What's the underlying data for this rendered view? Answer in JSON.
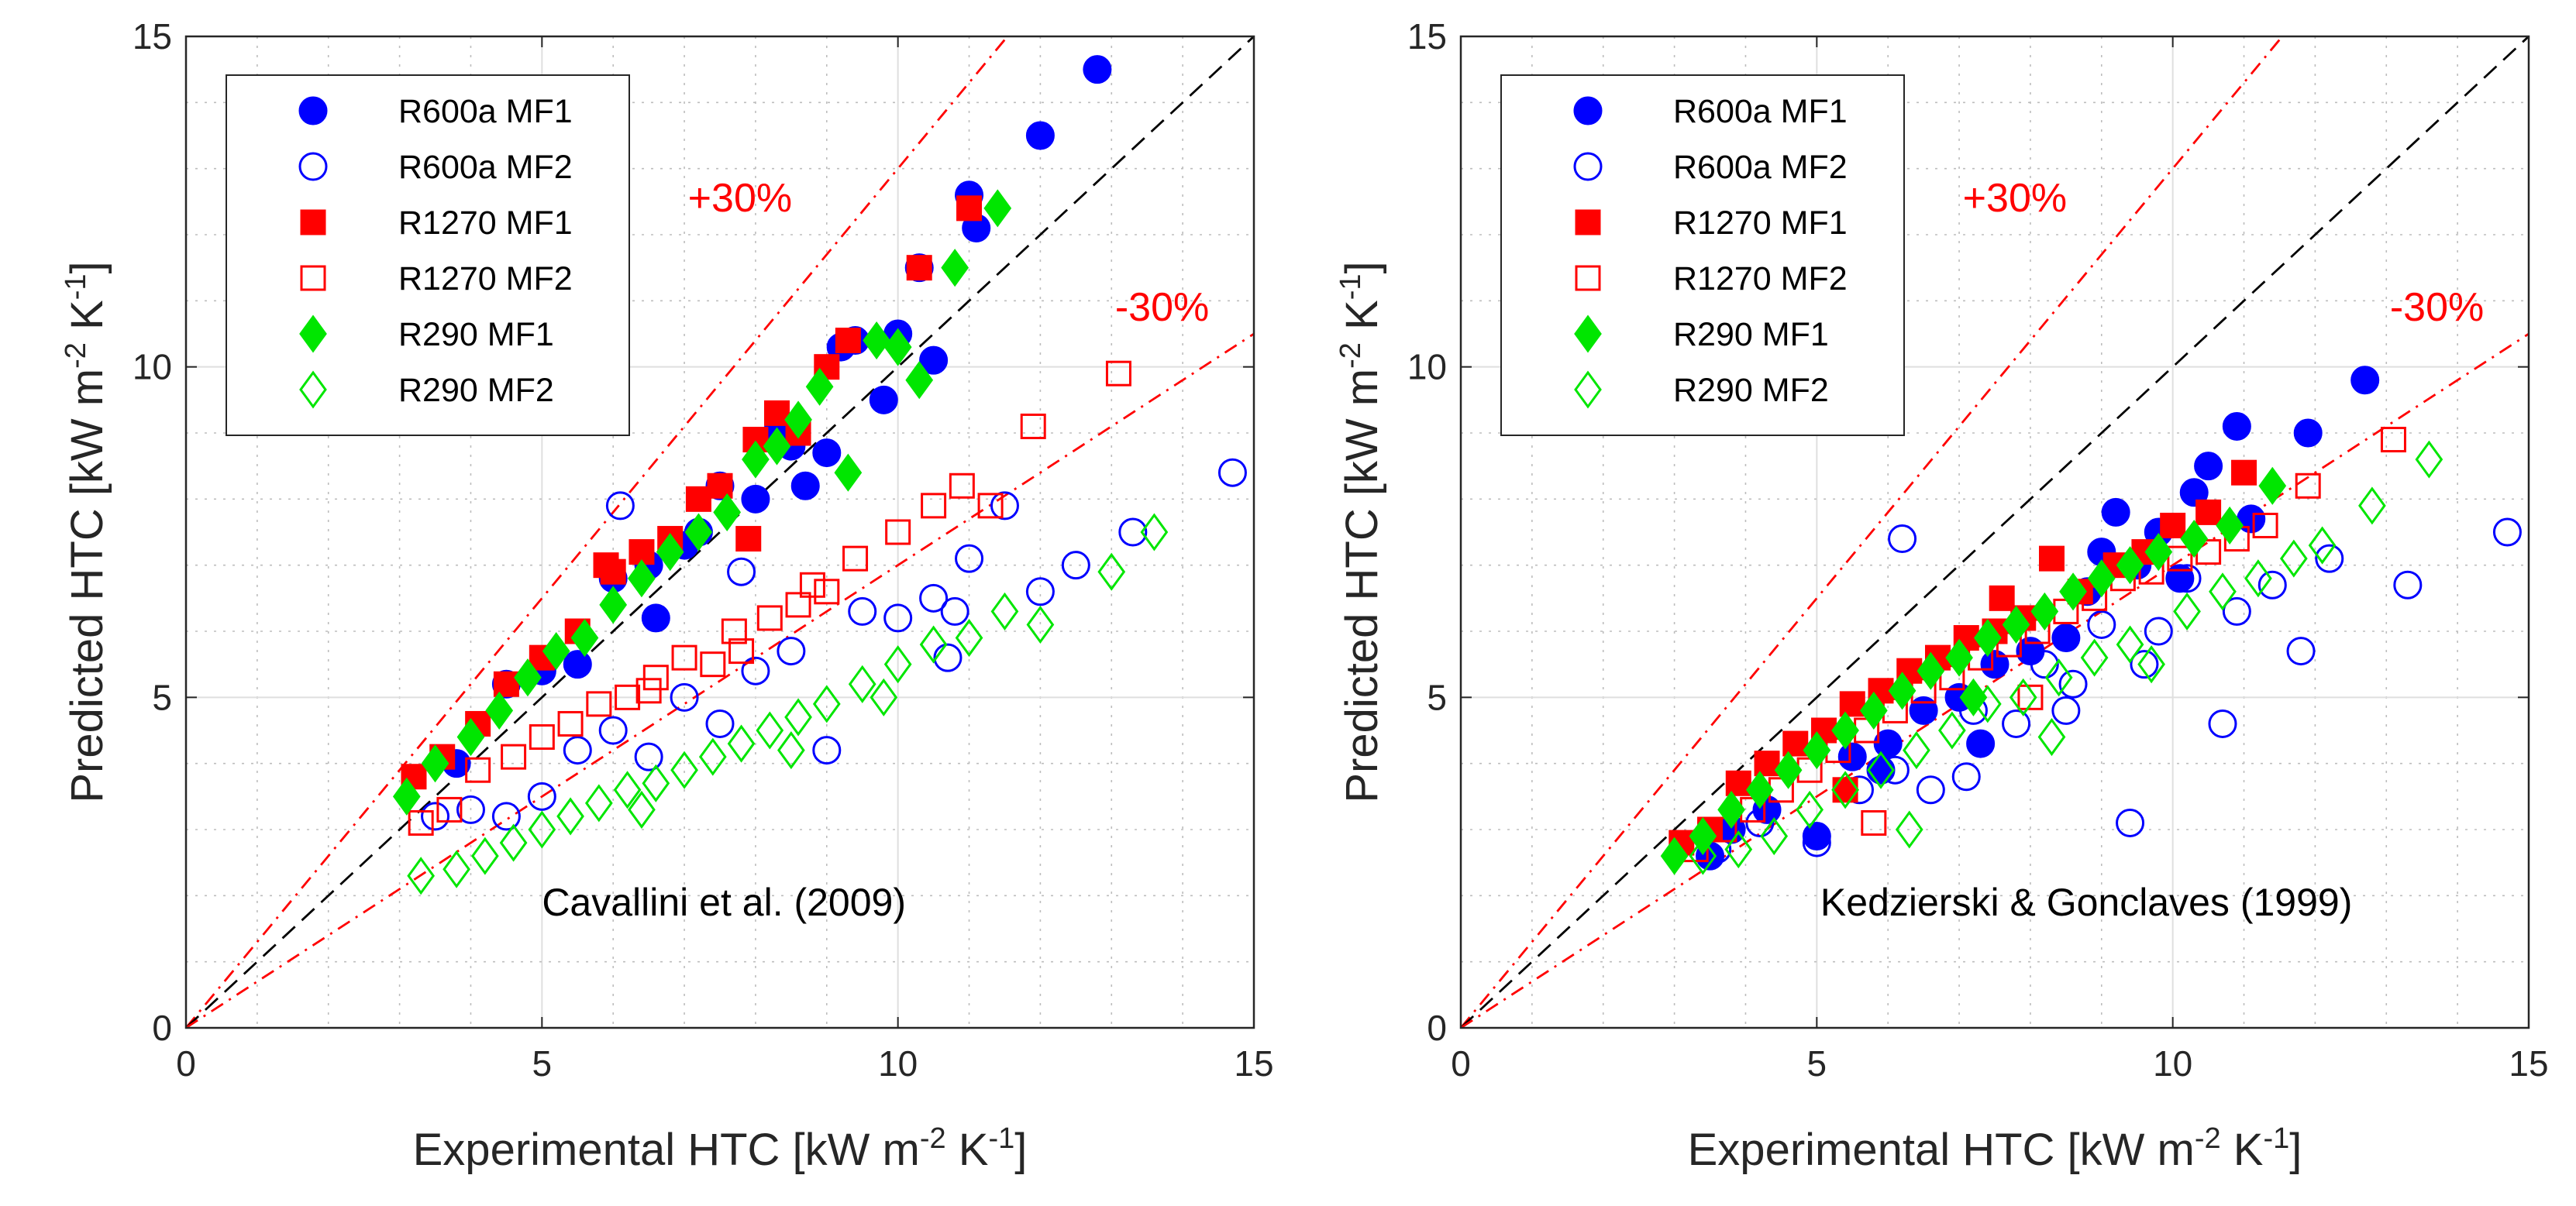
{
  "colors": {
    "R600a": "#0000ff",
    "R1270": "#ff0000",
    "R290": "#00e600",
    "band": "#ff0000",
    "identity": "#000000"
  },
  "chart_data": [
    {
      "type": "scatter",
      "annotation": "Cavallini et al. (2009)",
      "xlabel": "Experimental HTC [kW m",
      "ylabel": "Predicted HTC [kW m",
      "unit_exp_m": "-2",
      "unit_k": " K",
      "unit_exp_k": "-1",
      "unit_close": "]",
      "xlim": [
        0,
        15
      ],
      "ylim": [
        0,
        15
      ],
      "xticks": [
        "0",
        "5",
        "10",
        "15"
      ],
      "yticks": [
        "0",
        "5",
        "10",
        "15"
      ],
      "grid": true,
      "legend_position": "top-left",
      "band_labels": {
        "plus": "+30%",
        "minus": "-30%"
      },
      "series": [
        {
          "name": "R600a MF1",
          "marker": "circle",
          "filled": true,
          "color": "#0000ff",
          "x": [
            3.8,
            4.5,
            5.0,
            5.5,
            6.0,
            6.5,
            7.0,
            7.5,
            8.0,
            8.5,
            8.7,
            9.0,
            9.2,
            9.4,
            9.8,
            10.0,
            10.3,
            10.5,
            11.0,
            11.1,
            12.0,
            12.8,
            6.6,
            7.2,
            8.3
          ],
          "y": [
            4.0,
            5.2,
            5.4,
            5.5,
            6.8,
            7.0,
            7.3,
            8.2,
            8.0,
            8.8,
            8.2,
            8.7,
            10.3,
            10.4,
            9.5,
            10.5,
            11.5,
            10.1,
            12.6,
            12.1,
            13.5,
            14.5,
            6.2,
            7.5,
            9.0
          ]
        },
        {
          "name": "R600a MF2",
          "marker": "circle",
          "filled": false,
          "color": "#0000ff",
          "x": [
            3.5,
            4.0,
            4.5,
            5.0,
            5.5,
            6.0,
            6.5,
            7.0,
            7.5,
            8.0,
            8.5,
            9.0,
            9.5,
            10.0,
            10.5,
            10.8,
            11.0,
            11.5,
            12.0,
            12.5,
            13.3,
            14.7,
            6.1,
            7.8,
            10.7
          ],
          "y": [
            3.2,
            3.3,
            3.2,
            3.5,
            4.2,
            4.5,
            4.1,
            5.0,
            4.6,
            5.4,
            5.7,
            4.2,
            6.3,
            6.2,
            6.5,
            6.3,
            7.1,
            7.9,
            6.6,
            7.0,
            7.5,
            8.4,
            7.9,
            6.9,
            5.6
          ]
        },
        {
          "name": "R1270 MF1",
          "marker": "square",
          "filled": true,
          "color": "#ff0000",
          "x": [
            3.2,
            3.6,
            4.1,
            4.5,
            5.0,
            5.5,
            5.9,
            6.4,
            6.8,
            7.2,
            7.5,
            8.0,
            8.3,
            8.6,
            9.0,
            9.3,
            10.3,
            11.0,
            6.0,
            7.9
          ],
          "y": [
            3.8,
            4.1,
            4.6,
            5.2,
            5.6,
            6.0,
            7.0,
            7.2,
            7.4,
            8.0,
            8.2,
            8.9,
            9.3,
            9.0,
            10.0,
            10.4,
            11.5,
            12.4,
            6.9,
            7.4
          ]
        },
        {
          "name": "R1270 MF2",
          "marker": "square",
          "filled": false,
          "color": "#ff0000",
          "x": [
            3.3,
            3.7,
            4.1,
            4.6,
            5.0,
            5.4,
            5.8,
            6.2,
            6.6,
            7.0,
            7.4,
            7.8,
            8.2,
            8.6,
            9.0,
            9.4,
            10.0,
            10.5,
            10.9,
            11.3,
            11.9,
            13.1,
            6.5,
            7.7,
            8.8
          ],
          "y": [
            3.1,
            3.3,
            3.9,
            4.1,
            4.4,
            4.6,
            4.9,
            5.0,
            5.3,
            5.6,
            5.5,
            5.7,
            6.2,
            6.4,
            6.6,
            7.1,
            7.5,
            7.9,
            8.2,
            7.9,
            9.1,
            9.9,
            5.1,
            6.0,
            6.7
          ]
        },
        {
          "name": "R290 MF1",
          "marker": "diamond",
          "filled": true,
          "color": "#00e600",
          "x": [
            3.1,
            3.5,
            4.0,
            4.4,
            4.8,
            5.2,
            5.6,
            6.0,
            6.4,
            6.8,
            7.2,
            7.6,
            8.0,
            8.3,
            8.6,
            8.9,
            9.3,
            9.7,
            10.0,
            10.3,
            10.8,
            11.4
          ],
          "y": [
            3.5,
            4.0,
            4.4,
            4.8,
            5.3,
            5.7,
            5.9,
            6.4,
            6.8,
            7.2,
            7.5,
            7.8,
            8.6,
            8.8,
            9.2,
            9.7,
            8.4,
            10.4,
            10.3,
            9.8,
            11.5,
            12.4
          ]
        },
        {
          "name": "R290 MF2",
          "marker": "diamond",
          "filled": false,
          "color": "#00e600",
          "x": [
            3.3,
            3.8,
            4.2,
            4.6,
            5.0,
            5.4,
            5.8,
            6.2,
            6.6,
            7.0,
            7.4,
            7.8,
            8.2,
            8.6,
            9.0,
            9.5,
            10.0,
            10.5,
            11.0,
            11.5,
            12.0,
            13.0,
            13.6,
            6.4,
            8.5,
            9.8
          ],
          "y": [
            2.3,
            2.4,
            2.6,
            2.8,
            3.0,
            3.2,
            3.4,
            3.6,
            3.7,
            3.9,
            4.1,
            4.3,
            4.5,
            4.7,
            4.9,
            5.2,
            5.5,
            5.8,
            5.9,
            6.3,
            6.1,
            6.9,
            7.5,
            3.3,
            4.2,
            5.0
          ]
        }
      ]
    },
    {
      "type": "scatter",
      "annotation": "Kedzierski & Gonclaves (1999)",
      "xlabel": "Experimental HTC [kW m",
      "ylabel": "Predicted HTC [kW m",
      "unit_exp_m": "-2",
      "unit_k": " K",
      "unit_exp_k": "-1",
      "unit_close": "]",
      "xlim": [
        0,
        15
      ],
      "ylim": [
        0,
        15
      ],
      "xticks": [
        "0",
        "5",
        "10",
        "15"
      ],
      "yticks": [
        "0",
        "5",
        "10",
        "15"
      ],
      "grid": true,
      "legend_position": "top-left",
      "band_labels": {
        "plus": "+30%",
        "minus": "-30%"
      },
      "series": [
        {
          "name": "R600a MF1",
          "marker": "circle",
          "filled": true,
          "color": "#0000ff",
          "x": [
            3.5,
            3.8,
            4.3,
            5.0,
            5.5,
            6.0,
            6.5,
            7.0,
            7.5,
            8.0,
            8.5,
            9.0,
            9.2,
            9.5,
            9.8,
            10.1,
            10.3,
            10.5,
            10.9,
            11.1,
            11.9,
            12.7,
            8.8,
            7.3,
            5.9
          ],
          "y": [
            2.6,
            3.0,
            3.3,
            2.9,
            4.1,
            4.3,
            4.8,
            5.0,
            5.5,
            5.7,
            5.9,
            7.2,
            7.8,
            7.0,
            7.5,
            6.8,
            8.1,
            8.5,
            9.1,
            7.7,
            9.0,
            9.8,
            6.6,
            4.3,
            3.9
          ]
        },
        {
          "name": "R600a MF2",
          "marker": "circle",
          "filled": false,
          "color": "#0000ff",
          "x": [
            3.6,
            4.2,
            5.0,
            5.6,
            6.1,
            6.6,
            7.2,
            7.8,
            8.2,
            8.6,
            9.0,
            9.4,
            9.8,
            10.2,
            10.7,
            10.9,
            11.4,
            11.8,
            12.2,
            13.3,
            14.7,
            7.1,
            9.6,
            6.2,
            8.5
          ],
          "y": [
            2.7,
            3.1,
            2.8,
            3.6,
            3.9,
            3.6,
            4.8,
            4.6,
            5.5,
            5.2,
            6.1,
            3.1,
            6.0,
            6.8,
            4.6,
            6.3,
            6.7,
            5.7,
            7.1,
            6.7,
            7.5,
            3.8,
            5.5,
            7.4,
            4.8
          ]
        },
        {
          "name": "R1270 MF1",
          "marker": "square",
          "filled": true,
          "color": "#ff0000",
          "x": [
            3.1,
            3.5,
            3.9,
            4.3,
            4.7,
            5.1,
            5.5,
            5.9,
            6.3,
            6.7,
            7.1,
            7.5,
            7.9,
            8.3,
            8.7,
            9.2,
            9.6,
            10.0,
            10.5,
            11.0,
            7.6,
            5.4
          ],
          "y": [
            2.8,
            3.0,
            3.7,
            4.0,
            4.3,
            4.5,
            4.9,
            5.1,
            5.4,
            5.6,
            5.9,
            6.0,
            6.2,
            7.1,
            6.6,
            7.0,
            7.2,
            7.6,
            7.8,
            8.4,
            6.5,
            3.6
          ]
        },
        {
          "name": "R1270 MF2",
          "marker": "square",
          "filled": false,
          "color": "#ff0000",
          "x": [
            3.3,
            3.7,
            4.1,
            4.5,
            4.9,
            5.3,
            5.7,
            6.1,
            6.5,
            6.9,
            7.3,
            7.7,
            8.1,
            8.5,
            8.9,
            9.3,
            9.7,
            10.1,
            10.5,
            10.9,
            11.3,
            11.9,
            13.1,
            5.8,
            8.0
          ],
          "y": [
            2.7,
            3.0,
            3.3,
            3.6,
            3.9,
            4.2,
            4.5,
            4.8,
            5.1,
            5.3,
            5.6,
            5.8,
            6.0,
            6.3,
            6.5,
            6.8,
            6.9,
            7.1,
            7.2,
            7.4,
            7.6,
            8.2,
            8.9,
            3.1,
            5.0
          ]
        },
        {
          "name": "R290 MF1",
          "marker": "diamond",
          "filled": true,
          "color": "#00e600",
          "x": [
            3.0,
            3.4,
            3.8,
            4.2,
            4.6,
            5.0,
            5.4,
            5.8,
            6.2,
            6.6,
            7.0,
            7.4,
            7.8,
            8.2,
            8.6,
            9.0,
            9.4,
            9.8,
            10.3,
            10.8,
            11.4,
            7.2
          ],
          "y": [
            2.6,
            2.9,
            3.3,
            3.6,
            3.9,
            4.2,
            4.5,
            4.8,
            5.1,
            5.4,
            5.6,
            5.9,
            6.1,
            6.3,
            6.6,
            6.8,
            7.0,
            7.2,
            7.4,
            7.6,
            8.2,
            5.0
          ]
        },
        {
          "name": "R290 MF2",
          "marker": "diamond",
          "filled": false,
          "color": "#00e600",
          "x": [
            3.4,
            3.9,
            4.4,
            4.9,
            5.4,
            5.9,
            6.4,
            6.9,
            7.4,
            7.9,
            8.4,
            8.9,
            9.4,
            9.7,
            10.2,
            10.7,
            11.2,
            11.7,
            12.1,
            12.8,
            13.6,
            6.3,
            8.3
          ],
          "y": [
            2.6,
            2.7,
            2.9,
            3.3,
            3.6,
            3.9,
            4.2,
            4.5,
            4.9,
            5.0,
            5.3,
            5.6,
            5.8,
            5.5,
            6.3,
            6.6,
            6.8,
            7.1,
            7.3,
            7.9,
            8.6,
            3.0,
            4.4
          ]
        }
      ]
    }
  ]
}
